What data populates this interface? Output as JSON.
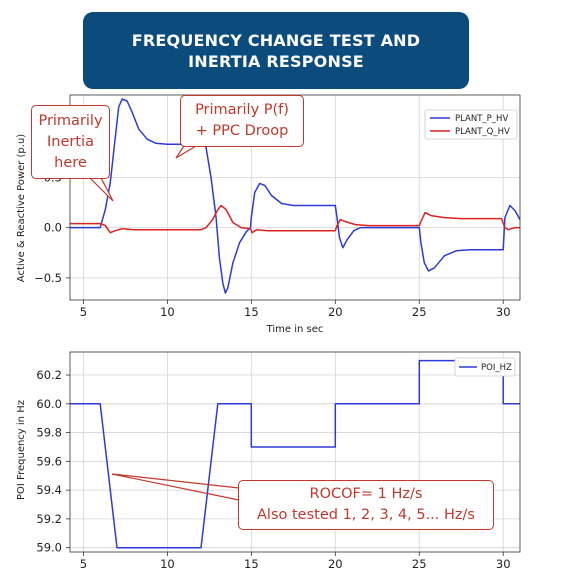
{
  "title": {
    "line1": "FREQUENCY CHANGE TEST AND",
    "line2": "INERTIA RESPONSE"
  },
  "colors": {
    "title_bg": "#0b4c7d",
    "p_series": "#2b3bd6",
    "q_series": "#dd2222",
    "hz_series": "#2b3bd6",
    "callout": "#c0392b"
  },
  "callouts": {
    "inertia": [
      "Primarily",
      "Inertia",
      "here"
    ],
    "pf": [
      "Primarily P(f)",
      "+ PPC Droop"
    ],
    "rocof": [
      "ROCOF= 1 Hz/s",
      "Also tested 1, 2, 3, 4, 5... Hz/s"
    ]
  },
  "chart_data": [
    {
      "type": "line",
      "xlabel": "Time in sec",
      "ylabel": "Active & Reactive Power (p.u)",
      "xlim": [
        4.2,
        31
      ],
      "ylim": [
        -0.72,
        1.32
      ],
      "xticks": [
        5,
        10,
        15,
        20,
        25,
        30
      ],
      "yticks": [
        -0.5,
        0.0,
        0.5
      ],
      "ytick_labels": [
        "−0.5",
        "0.0",
        "0.5"
      ],
      "grid": true,
      "legend_position": "top-right",
      "series": [
        {
          "name": "PLANT_P_HV",
          "color": "#2b3bd6",
          "points": [
            [
              4.2,
              0.0
            ],
            [
              6.0,
              0.0
            ],
            [
              6.3,
              0.18
            ],
            [
              6.6,
              0.45
            ],
            [
              6.9,
              0.9
            ],
            [
              7.1,
              1.2
            ],
            [
              7.3,
              1.28
            ],
            [
              7.6,
              1.26
            ],
            [
              7.9,
              1.15
            ],
            [
              8.3,
              0.98
            ],
            [
              8.8,
              0.88
            ],
            [
              9.3,
              0.84
            ],
            [
              10.0,
              0.83
            ],
            [
              12.0,
              0.83
            ],
            [
              12.3,
              0.8
            ],
            [
              12.6,
              0.5
            ],
            [
              12.9,
              0.1
            ],
            [
              13.1,
              -0.3
            ],
            [
              13.3,
              -0.55
            ],
            [
              13.45,
              -0.65
            ],
            [
              13.6,
              -0.6
            ],
            [
              13.9,
              -0.35
            ],
            [
              14.3,
              -0.15
            ],
            [
              14.7,
              -0.04
            ],
            [
              14.95,
              0.0
            ],
            [
              15.0,
              0.1
            ],
            [
              15.2,
              0.35
            ],
            [
              15.5,
              0.44
            ],
            [
              15.8,
              0.42
            ],
            [
              16.2,
              0.32
            ],
            [
              16.8,
              0.24
            ],
            [
              17.5,
              0.22
            ],
            [
              20.0,
              0.22
            ],
            [
              20.1,
              0.1
            ],
            [
              20.25,
              -0.1
            ],
            [
              20.45,
              -0.2
            ],
            [
              20.7,
              -0.12
            ],
            [
              21.1,
              -0.03
            ],
            [
              21.5,
              0.0
            ],
            [
              25.0,
              0.0
            ],
            [
              25.1,
              -0.15
            ],
            [
              25.3,
              -0.35
            ],
            [
              25.55,
              -0.43
            ],
            [
              25.9,
              -0.4
            ],
            [
              26.5,
              -0.28
            ],
            [
              27.2,
              -0.23
            ],
            [
              28.0,
              -0.22
            ],
            [
              29.8,
              -0.22
            ],
            [
              30.0,
              -0.22
            ],
            [
              30.1,
              0.1
            ],
            [
              30.4,
              0.22
            ],
            [
              30.7,
              0.17
            ],
            [
              31.0,
              0.08
            ]
          ]
        },
        {
          "name": "PLANT_Q_HV",
          "color": "#dd2222",
          "points": [
            [
              4.2,
              0.04
            ],
            [
              6.0,
              0.04
            ],
            [
              6.3,
              0.02
            ],
            [
              6.6,
              -0.05
            ],
            [
              6.9,
              -0.03
            ],
            [
              7.3,
              -0.01
            ],
            [
              8.0,
              -0.02
            ],
            [
              12.0,
              -0.02
            ],
            [
              12.3,
              0.0
            ],
            [
              12.7,
              0.08
            ],
            [
              13.0,
              0.18
            ],
            [
              13.2,
              0.22
            ],
            [
              13.5,
              0.18
            ],
            [
              13.9,
              0.05
            ],
            [
              14.4,
              0.0
            ],
            [
              14.95,
              -0.01
            ],
            [
              15.05,
              -0.05
            ],
            [
              15.3,
              -0.02
            ],
            [
              16.0,
              -0.03
            ],
            [
              20.0,
              -0.03
            ],
            [
              20.1,
              0.02
            ],
            [
              20.3,
              0.08
            ],
            [
              20.6,
              0.06
            ],
            [
              21.2,
              0.03
            ],
            [
              22.0,
              0.02
            ],
            [
              25.0,
              0.02
            ],
            [
              25.1,
              0.06
            ],
            [
              25.35,
              0.15
            ],
            [
              25.7,
              0.12
            ],
            [
              26.5,
              0.1
            ],
            [
              27.5,
              0.09
            ],
            [
              29.9,
              0.09
            ],
            [
              30.1,
              0.0
            ],
            [
              30.3,
              -0.02
            ],
            [
              30.7,
              0.0
            ],
            [
              31.0,
              0.0
            ]
          ]
        }
      ]
    },
    {
      "type": "line",
      "xlabel": "",
      "ylabel": "POI Frequency in Hz",
      "xlim": [
        4.2,
        31
      ],
      "ylim": [
        58.97,
        60.36
      ],
      "xticks": [
        5,
        10,
        15,
        20,
        25,
        30
      ],
      "yticks": [
        59.0,
        59.2,
        59.4,
        59.6,
        59.8,
        60.0,
        60.2
      ],
      "ytick_labels": [
        "59.0",
        "59.2",
        "59.4",
        "59.6",
        "59.8",
        "60.0",
        "60.2"
      ],
      "grid": true,
      "legend_position": "top-right",
      "series": [
        {
          "name": "POI_HZ",
          "color": "#2b3bd6",
          "points": [
            [
              4.2,
              60.0
            ],
            [
              6.0,
              60.0
            ],
            [
              7.0,
              59.0
            ],
            [
              12.0,
              59.0
            ],
            [
              13.0,
              60.0
            ],
            [
              15.0,
              60.0
            ],
            [
              15.0,
              59.7
            ],
            [
              20.0,
              59.7
            ],
            [
              20.0,
              60.0
            ],
            [
              25.0,
              60.0
            ],
            [
              25.0,
              60.3
            ],
            [
              30.0,
              60.3
            ],
            [
              30.0,
              60.0
            ],
            [
              31.0,
              60.0
            ]
          ]
        }
      ]
    }
  ]
}
